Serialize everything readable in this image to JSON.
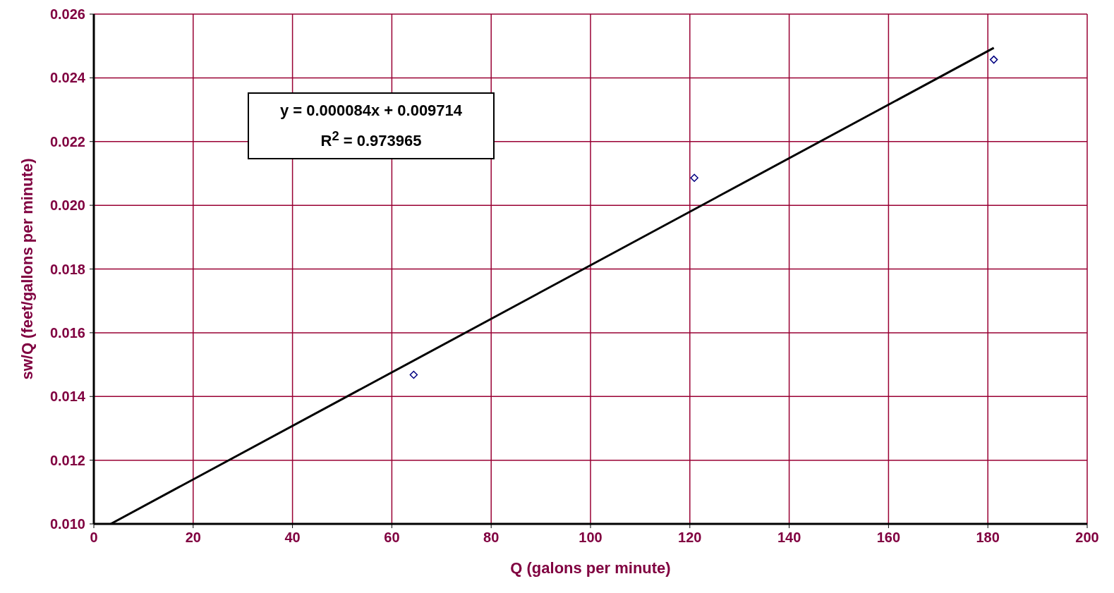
{
  "chart_data": {
    "type": "scatter",
    "xlabel": "Q (galons per minute)",
    "ylabel": "sw/Q (feet/gallons per minute)",
    "xlim": [
      0,
      200
    ],
    "xticks": [
      0,
      20,
      40,
      60,
      80,
      100,
      120,
      140,
      160,
      180,
      200
    ],
    "ylim": [
      0.01,
      0.026
    ],
    "yticks": [
      {
        "value": 0.01,
        "label": "0.010"
      },
      {
        "value": 0.012,
        "label": "0.012"
      },
      {
        "value": 0.014,
        "label": "0.014"
      },
      {
        "value": 0.016,
        "label": "0.016"
      },
      {
        "value": 0.018,
        "label": "0.018"
      },
      {
        "value": 0.02,
        "label": "0.020"
      },
      {
        "value": 0.022,
        "label": "0.022"
      },
      {
        "value": 0.024,
        "label": "0.024"
      },
      {
        "value": 0.026,
        "label": "0.026"
      }
    ],
    "grid": true,
    "series": [
      {
        "marker": "diamond",
        "color": "#000080",
        "x": [
          64.4,
          120.9,
          181.2
        ],
        "values": [
          0.01468,
          0.02086,
          0.02457
        ]
      },
      {
        "type": "line",
        "marker": "none",
        "color": "#000000",
        "x": [
          3.4,
          181.2
        ],
        "values": [
          0.01,
          0.02494
        ]
      }
    ],
    "annotations": [
      "y = 0.000084x + 0.009714",
      "R$^{2}$ = 0.973965"
    ]
  }
}
